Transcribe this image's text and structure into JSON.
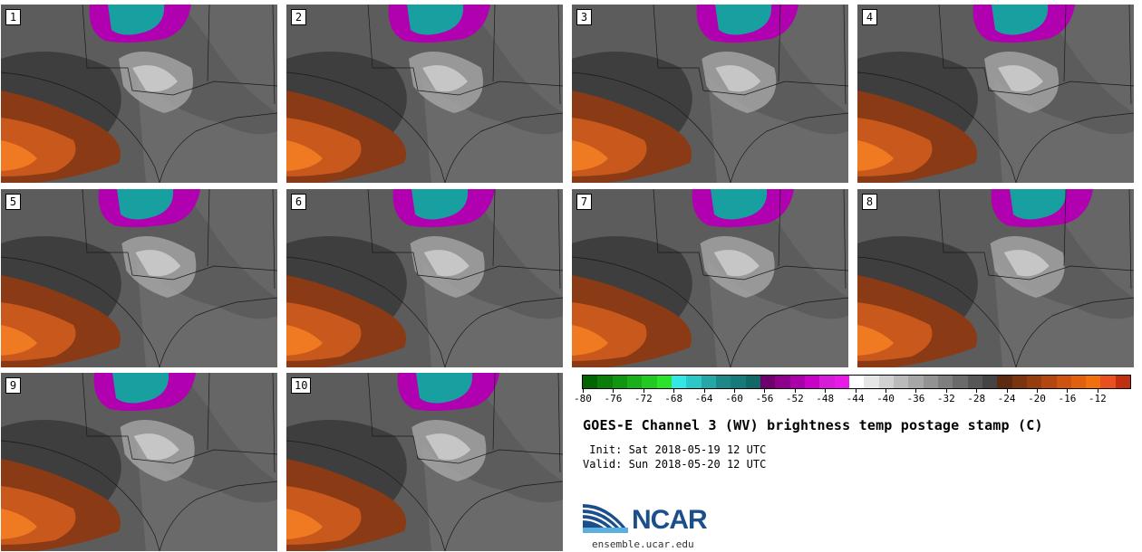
{
  "panels": [
    {
      "label": "1"
    },
    {
      "label": "2"
    },
    {
      "label": "3"
    },
    {
      "label": "4"
    },
    {
      "label": "5"
    },
    {
      "label": "6"
    },
    {
      "label": "7"
    },
    {
      "label": "8"
    },
    {
      "label": "9"
    },
    {
      "label": "10"
    }
  ],
  "colorbar": {
    "colors": [
      "#006400",
      "#0a7d0a",
      "#119611",
      "#19b019",
      "#21c921",
      "#2ae32a",
      "#33e7e7",
      "#2cc7c7",
      "#25a7a7",
      "#1e8787",
      "#177a7a",
      "#106868",
      "#6e006e",
      "#8c008c",
      "#aa00aa",
      "#c800c8",
      "#d61cd6",
      "#e81ae8",
      "#ffffff",
      "#e6e6e6",
      "#d0d0d0",
      "#bababa",
      "#a6a6a6",
      "#929292",
      "#7e7e7e",
      "#6a6a6a",
      "#565656",
      "#444444",
      "#5c2a10",
      "#7a3410",
      "#963d10",
      "#b24810",
      "#cc5410",
      "#e06010",
      "#f07010",
      "#e85020",
      "#c03010"
    ],
    "ticks": [
      "-80",
      "-76",
      "-72",
      "-68",
      "-64",
      "-60",
      "-56",
      "-52",
      "-48",
      "-44",
      "-40",
      "-36",
      "-32",
      "-28",
      "-24",
      "-20",
      "-16",
      "-12"
    ]
  },
  "title": "GOES-E Channel 3 (WV) brightness temp postage stamp (C)",
  "init": " Init: Sat 2018-05-19 12 UTC",
  "valid": "Valid: Sun 2018-05-20 12 UTC",
  "logo": {
    "text": "NCAR",
    "url": "ensemble.ucar.edu",
    "color": "#1a4f8b"
  }
}
